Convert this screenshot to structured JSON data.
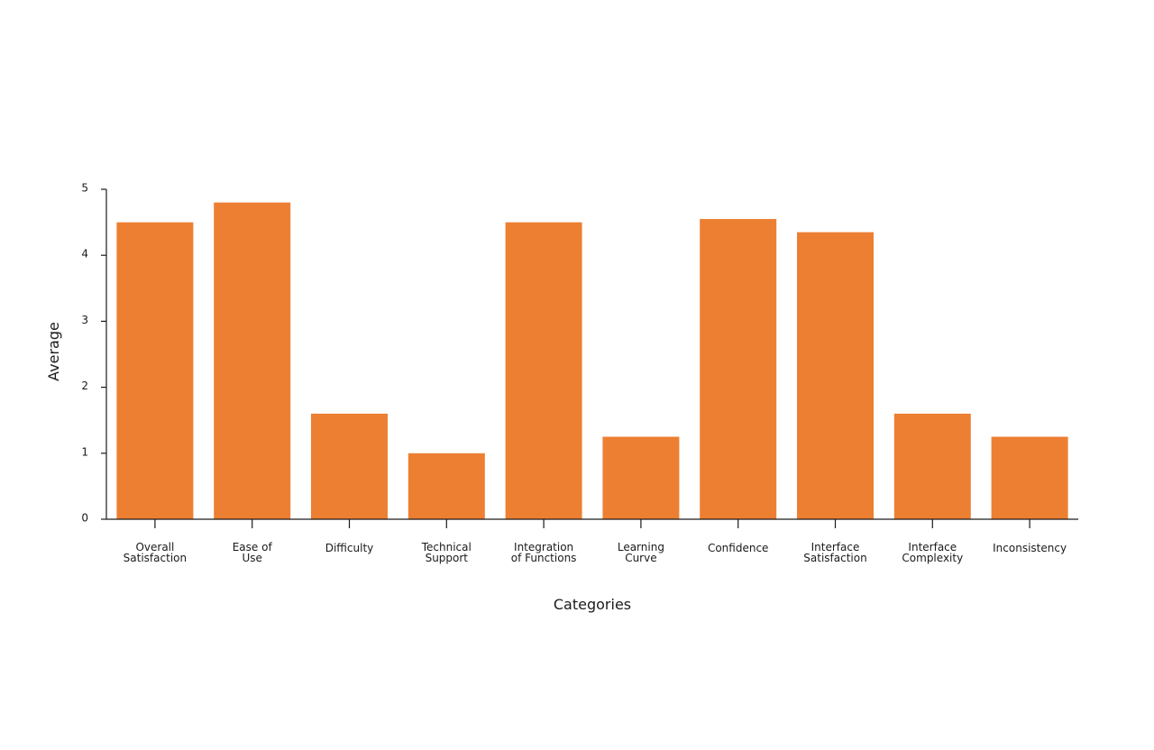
{
  "chart_data": {
    "type": "bar",
    "title": "",
    "xlabel": "Categories",
    "ylabel": "Average",
    "ylim": [
      0,
      5
    ],
    "yticks": [
      "0",
      "1",
      "2",
      "3",
      "4",
      "5"
    ],
    "grid": false,
    "color": "#ED7F33",
    "categories": [
      [
        "Overall",
        "Satisfaction"
      ],
      [
        "Ease of",
        "Use"
      ],
      [
        "Difficulty"
      ],
      [
        "Technical",
        "Support"
      ],
      [
        "Integration",
        "of Functions"
      ],
      [
        "Learning",
        "Curve"
      ],
      [
        "Confidence"
      ],
      [
        "Interface",
        "Satisfaction"
      ],
      [
        "Interface",
        "Complexity"
      ],
      [
        "Inconsistency"
      ]
    ],
    "values": [
      4.5,
      4.8,
      1.6,
      1.0,
      4.5,
      1.25,
      4.55,
      4.35,
      1.6,
      1.25
    ]
  }
}
